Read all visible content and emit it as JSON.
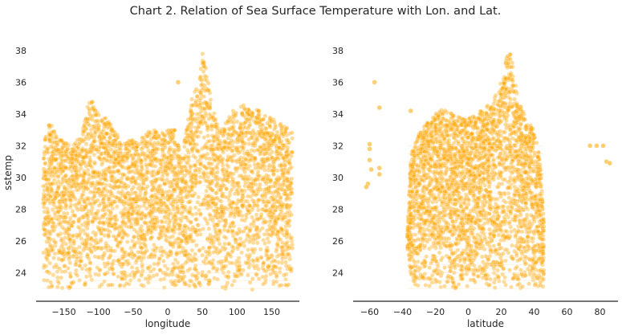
{
  "figure": {
    "title": "Chart 2. Relation of Sea Surface Temperature with Lon. and Lat.",
    "point_color": "#ffa500",
    "point_alpha": 0.4,
    "background": "#ffffff",
    "axis_color": "#262626"
  },
  "chart_data": [
    {
      "type": "scatter",
      "xlabel": "longitude",
      "ylabel": "sstemp",
      "xlim": [
        -190,
        190
      ],
      "ylim": [
        22.2,
        38.4
      ],
      "xticks": [
        -150,
        -100,
        -50,
        0,
        50,
        100,
        150
      ],
      "yticks": [
        24,
        26,
        28,
        30,
        32,
        34,
        36,
        38
      ],
      "grid": false,
      "envelope": {
        "x": [
          -180,
          -175,
          -170,
          -165,
          -160,
          -150,
          -140,
          -130,
          -120,
          -115,
          -110,
          -100,
          -90,
          -80,
          -70,
          -60,
          -50,
          -40,
          -30,
          -20,
          -10,
          0,
          10,
          20,
          30,
          35,
          40,
          45,
          50,
          55,
          60,
          65,
          70,
          80,
          90,
          100,
          110,
          120,
          130,
          140,
          150,
          160,
          170,
          180
        ],
        "y_min": [
          23.0,
          22.9,
          22.9,
          23.0,
          22.9,
          23.0,
          22.9,
          23.0,
          22.9,
          23.0,
          22.9,
          23.0,
          22.9,
          23.0,
          22.9,
          23.0,
          22.9,
          23.0,
          23.0,
          22.9,
          23.0,
          22.9,
          23.0,
          22.9,
          23.0,
          22.9,
          23.0,
          22.9,
          23.0,
          22.9,
          23.0,
          22.9,
          23.0,
          22.9,
          23.0,
          22.9,
          23.0,
          22.9,
          23.0,
          22.9,
          23.0,
          22.9,
          23.0,
          22.9
        ],
        "y_max": [
          32.2,
          33.2,
          33.5,
          33.0,
          32.6,
          32.5,
          32.0,
          32.4,
          33.5,
          34.6,
          35.0,
          34.0,
          33.8,
          33.2,
          32.5,
          32.2,
          32.5,
          32.3,
          33.0,
          33.0,
          33.0,
          33.0,
          33.0,
          31.2,
          34.0,
          35.0,
          35.6,
          35.7,
          37.9,
          37.6,
          35.5,
          34.5,
          33.6,
          33.0,
          34.2,
          34.3,
          34.6,
          34.2,
          34.3,
          33.9,
          33.8,
          33.6,
          33.2,
          32.9
        ]
      },
      "outliers": [
        {
          "x": 15,
          "y": 36.0
        },
        {
          "x": 60,
          "y": 23.5
        },
        {
          "x": 55,
          "y": 23.8
        }
      ]
    },
    {
      "type": "scatter",
      "xlabel": "latitude",
      "ylabel": "",
      "xlim": [
        -70,
        91
      ],
      "ylim": [
        22.2,
        38.4
      ],
      "xticks": [
        -60,
        -40,
        -20,
        0,
        20,
        40,
        60,
        80
      ],
      "yticks": [
        24,
        26,
        28,
        30,
        32,
        34,
        36,
        38
      ],
      "grid": false,
      "envelope": {
        "x": [
          -37,
          -35,
          -30,
          -25,
          -20,
          -15,
          -10,
          -5,
          0,
          5,
          10,
          15,
          20,
          22,
          24,
          26,
          28,
          30,
          35,
          40,
          44,
          46
        ],
        "y_min": [
          25.5,
          23.0,
          22.9,
          23.0,
          22.9,
          23.0,
          22.9,
          23.0,
          22.9,
          23.0,
          22.9,
          23.0,
          22.9,
          23.0,
          22.9,
          23.0,
          22.9,
          23.0,
          22.9,
          23.0,
          23.0,
          23.0
        ],
        "y_max": [
          26.5,
          31.5,
          32.8,
          33.5,
          34.0,
          34.4,
          34.0,
          33.8,
          33.8,
          33.9,
          34.5,
          35.0,
          36.0,
          37.0,
          38.0,
          37.8,
          36.5,
          35.0,
          33.8,
          33.0,
          31.0,
          27.0
        ]
      },
      "outliers": [
        {
          "x": -57,
          "y": 36.0
        },
        {
          "x": -54,
          "y": 34.4
        },
        {
          "x": -60,
          "y": 32.1
        },
        {
          "x": -60,
          "y": 31.8
        },
        {
          "x": -60,
          "y": 31.1
        },
        {
          "x": -59,
          "y": 30.5
        },
        {
          "x": -54,
          "y": 30.6
        },
        {
          "x": -54,
          "y": 30.2
        },
        {
          "x": -61,
          "y": 29.6
        },
        {
          "x": -62,
          "y": 29.4
        },
        {
          "x": -35,
          "y": 34.2
        },
        {
          "x": 74,
          "y": 32.0
        },
        {
          "x": 78,
          "y": 32.0
        },
        {
          "x": 82,
          "y": 32.0
        },
        {
          "x": 84,
          "y": 31.0
        },
        {
          "x": 86,
          "y": 30.9
        }
      ]
    }
  ]
}
